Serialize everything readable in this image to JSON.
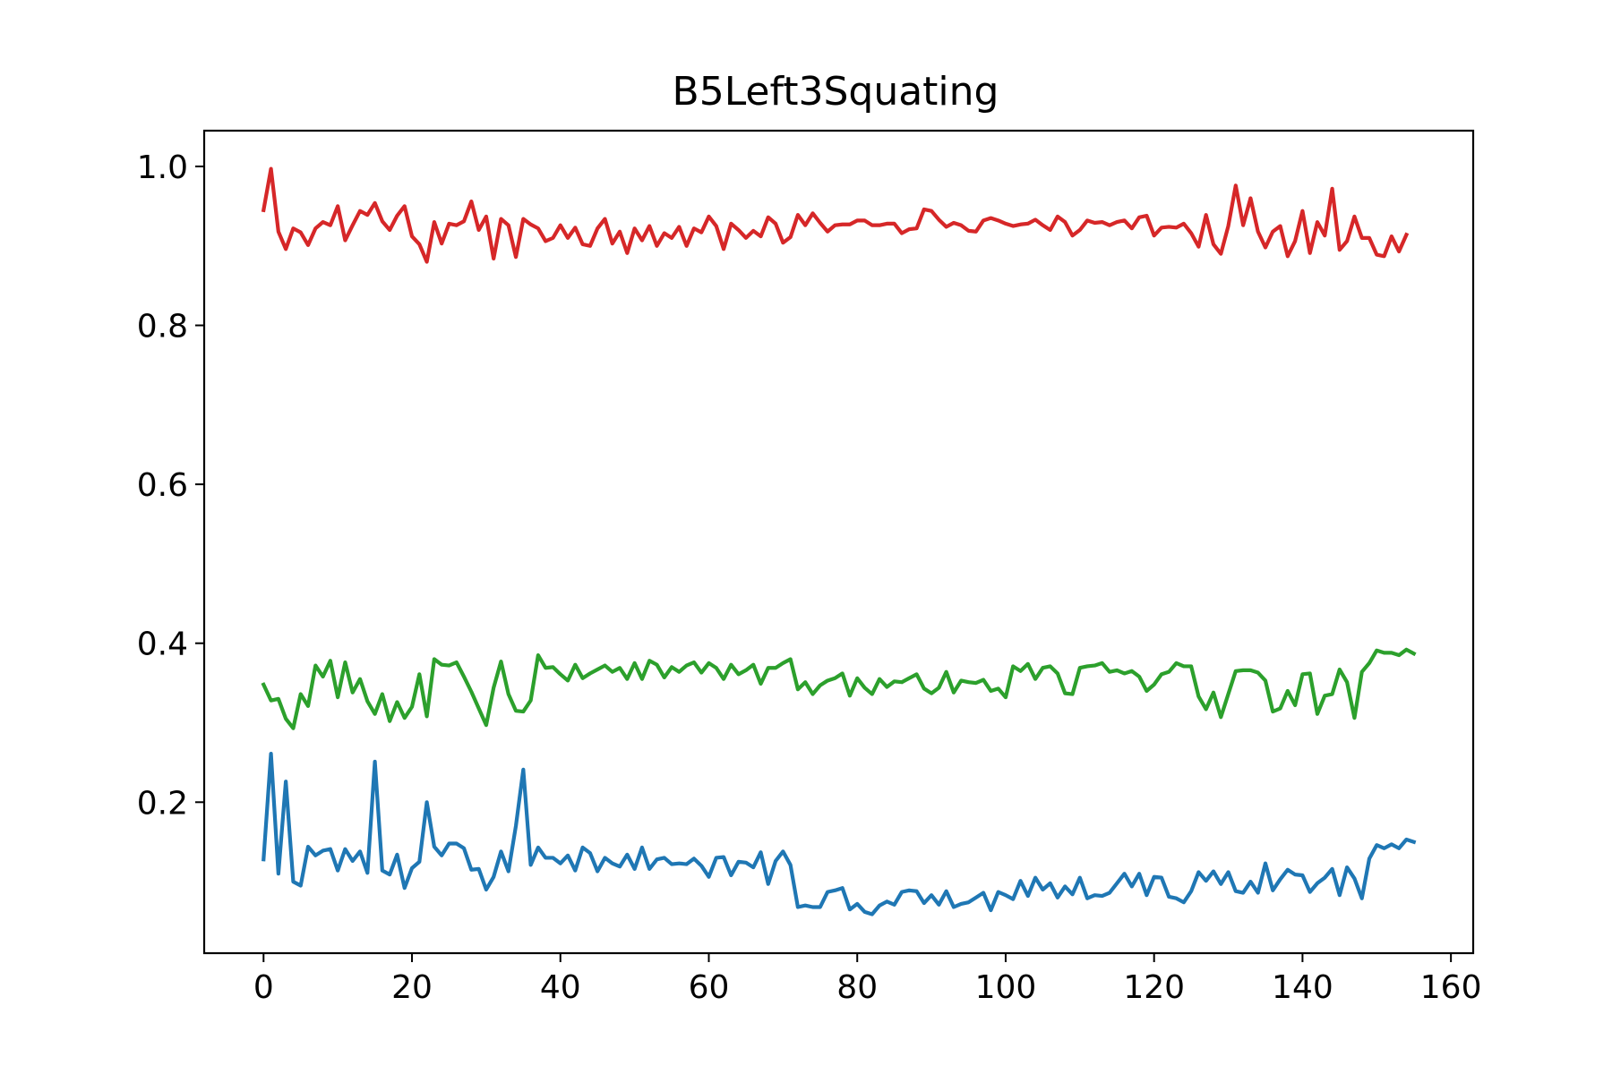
{
  "chart_data": {
    "type": "line",
    "title": "B5Left3Squating",
    "xlabel": "",
    "ylabel": "",
    "xlim": [
      -8,
      163
    ],
    "ylim": [
      0.01,
      1.045
    ],
    "xticks": [
      0,
      20,
      40,
      60,
      80,
      100,
      120,
      140,
      160
    ],
    "yticks": [
      0.2,
      0.4,
      0.6,
      0.8,
      1.0
    ],
    "xtick_labels": [
      "0",
      "20",
      "40",
      "60",
      "80",
      "100",
      "120",
      "140",
      "160"
    ],
    "ytick_labels": [
      "0.2",
      "0.4",
      "0.6",
      "0.8",
      "1.0"
    ],
    "grid": false,
    "legend": "none",
    "series": [
      {
        "color": "#d62728",
        "values": [
          0.945,
          0.997,
          0.918,
          0.896,
          0.922,
          0.917,
          0.901,
          0.922,
          0.93,
          0.926,
          0.95,
          0.907,
          0.926,
          0.944,
          0.939,
          0.954,
          0.931,
          0.92,
          0.938,
          0.95,
          0.912,
          0.902,
          0.88,
          0.93,
          0.903,
          0.928,
          0.926,
          0.931,
          0.956,
          0.92,
          0.937,
          0.884,
          0.934,
          0.926,
          0.886,
          0.934,
          0.927,
          0.922,
          0.906,
          0.91,
          0.926,
          0.91,
          0.923,
          0.902,
          0.9,
          0.922,
          0.934,
          0.903,
          0.918,
          0.891,
          0.922,
          0.907,
          0.925,
          0.9,
          0.916,
          0.91,
          0.924,
          0.9,
          0.922,
          0.917,
          0.937,
          0.925,
          0.896,
          0.928,
          0.92,
          0.91,
          0.919,
          0.912,
          0.936,
          0.928,
          0.904,
          0.911,
          0.939,
          0.926,
          0.941,
          0.929,
          0.918,
          0.926,
          0.927,
          0.927,
          0.932,
          0.932,
          0.926,
          0.926,
          0.928,
          0.928,
          0.916,
          0.921,
          0.922,
          0.946,
          0.944,
          0.933,
          0.924,
          0.929,
          0.926,
          0.919,
          0.918,
          0.932,
          0.935,
          0.932,
          0.928,
          0.925,
          0.927,
          0.928,
          0.933,
          0.926,
          0.92,
          0.937,
          0.93,
          0.913,
          0.92,
          0.932,
          0.929,
          0.93,
          0.926,
          0.93,
          0.932,
          0.922,
          0.936,
          0.938,
          0.913,
          0.923,
          0.924,
          0.923,
          0.928,
          0.916,
          0.899,
          0.939,
          0.902,
          0.89,
          0.925,
          0.976,
          0.926,
          0.96,
          0.918,
          0.898,
          0.918,
          0.925,
          0.887,
          0.906,
          0.944,
          0.891,
          0.93,
          0.913,
          0.972,
          0.895,
          0.906,
          0.937,
          0.91,
          0.91,
          0.889,
          0.887,
          0.912,
          0.893,
          0.914
        ]
      },
      {
        "color": "#2ca02c",
        "values": [
          0.348,
          0.328,
          0.33,
          0.305,
          0.293,
          0.336,
          0.321,
          0.372,
          0.358,
          0.378,
          0.332,
          0.376,
          0.338,
          0.355,
          0.327,
          0.311,
          0.336,
          0.302,
          0.326,
          0.306,
          0.32,
          0.361,
          0.308,
          0.38,
          0.373,
          0.372,
          0.376,
          0.358,
          0.339,
          0.318,
          0.297,
          0.344,
          0.377,
          0.336,
          0.315,
          0.314,
          0.328,
          0.385,
          0.369,
          0.37,
          0.361,
          0.353,
          0.373,
          0.356,
          0.362,
          0.367,
          0.372,
          0.364,
          0.369,
          0.355,
          0.375,
          0.355,
          0.378,
          0.373,
          0.357,
          0.37,
          0.364,
          0.372,
          0.376,
          0.363,
          0.375,
          0.369,
          0.355,
          0.373,
          0.361,
          0.366,
          0.373,
          0.349,
          0.369,
          0.369,
          0.375,
          0.38,
          0.342,
          0.351,
          0.336,
          0.347,
          0.353,
          0.356,
          0.362,
          0.334,
          0.356,
          0.344,
          0.336,
          0.355,
          0.345,
          0.352,
          0.351,
          0.356,
          0.361,
          0.343,
          0.337,
          0.344,
          0.364,
          0.338,
          0.353,
          0.351,
          0.35,
          0.354,
          0.34,
          0.343,
          0.332,
          0.371,
          0.365,
          0.374,
          0.355,
          0.369,
          0.371,
          0.362,
          0.337,
          0.336,
          0.369,
          0.371,
          0.372,
          0.375,
          0.364,
          0.366,
          0.362,
          0.365,
          0.358,
          0.34,
          0.348,
          0.361,
          0.364,
          0.375,
          0.371,
          0.371,
          0.333,
          0.317,
          0.338,
          0.307,
          0.336,
          0.365,
          0.366,
          0.366,
          0.363,
          0.353,
          0.314,
          0.318,
          0.34,
          0.322,
          0.361,
          0.362,
          0.311,
          0.334,
          0.336,
          0.367,
          0.351,
          0.306,
          0.364,
          0.375,
          0.391,
          0.388,
          0.388,
          0.385,
          0.392,
          0.387
        ]
      },
      {
        "color": "#1f77b4",
        "values": [
          0.128,
          0.261,
          0.11,
          0.226,
          0.1,
          0.095,
          0.144,
          0.133,
          0.139,
          0.141,
          0.114,
          0.141,
          0.126,
          0.138,
          0.111,
          0.251,
          0.114,
          0.109,
          0.134,
          0.092,
          0.117,
          0.125,
          0.2,
          0.144,
          0.133,
          0.148,
          0.148,
          0.142,
          0.115,
          0.116,
          0.09,
          0.106,
          0.138,
          0.113,
          0.17,
          0.241,
          0.121,
          0.143,
          0.13,
          0.13,
          0.123,
          0.133,
          0.114,
          0.143,
          0.136,
          0.113,
          0.13,
          0.123,
          0.119,
          0.134,
          0.116,
          0.143,
          0.116,
          0.128,
          0.13,
          0.122,
          0.123,
          0.122,
          0.129,
          0.12,
          0.106,
          0.13,
          0.131,
          0.108,
          0.125,
          0.124,
          0.118,
          0.137,
          0.097,
          0.126,
          0.138,
          0.121,
          0.068,
          0.07,
          0.068,
          0.068,
          0.087,
          0.089,
          0.092,
          0.065,
          0.072,
          0.062,
          0.059,
          0.07,
          0.075,
          0.071,
          0.087,
          0.089,
          0.088,
          0.073,
          0.083,
          0.071,
          0.088,
          0.068,
          0.072,
          0.074,
          0.08,
          0.086,
          0.064,
          0.087,
          0.083,
          0.078,
          0.101,
          0.082,
          0.105,
          0.09,
          0.098,
          0.08,
          0.094,
          0.084,
          0.105,
          0.079,
          0.083,
          0.082,
          0.086,
          0.098,
          0.11,
          0.094,
          0.11,
          0.083,
          0.106,
          0.105,
          0.081,
          0.079,
          0.074,
          0.088,
          0.112,
          0.101,
          0.113,
          0.097,
          0.112,
          0.088,
          0.086,
          0.1,
          0.086,
          0.123,
          0.089,
          0.103,
          0.115,
          0.109,
          0.108,
          0.087,
          0.098,
          0.105,
          0.116,
          0.083,
          0.118,
          0.104,
          0.079,
          0.129,
          0.146,
          0.142,
          0.147,
          0.142,
          0.153,
          0.15
        ]
      }
    ]
  }
}
